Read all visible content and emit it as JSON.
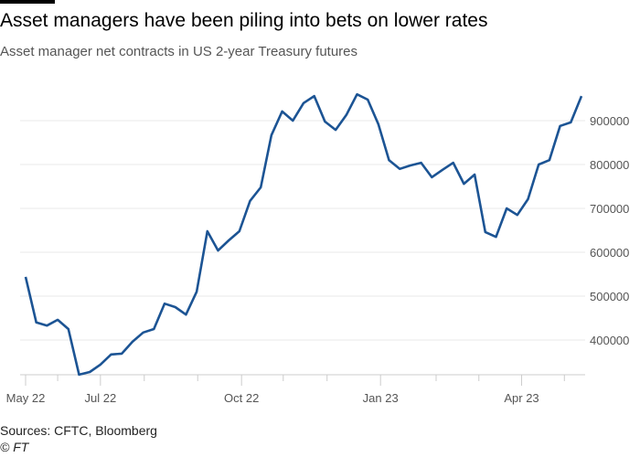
{
  "title": "Asset managers have been piling into bets on lower rates",
  "subtitle": "Asset manager net contracts in US 2-year Treasury futures",
  "source": "Sources: CFTC, Bloomberg",
  "credit": "© FT",
  "colors": {
    "line": "#1c5494",
    "grid": "#e8e8e8",
    "axis": "#cccccc"
  },
  "chart_data": {
    "type": "line",
    "title": "Asset managers have been piling into bets on lower rates",
    "xlabel": "",
    "ylabel": "",
    "ylim": [
      320000,
      980000
    ],
    "yticks": [
      400000,
      500000,
      600000,
      700000,
      800000,
      900000
    ],
    "ytick_labels": [
      "400000",
      "500000",
      "600000",
      "700000",
      "800000",
      "900000"
    ],
    "x_unit": "week index (weekly observations from May 2022)",
    "xticks": [
      {
        "pos": 0,
        "label": "May 22"
      },
      {
        "pos": 7,
        "label": "Jul 22"
      },
      {
        "pos": 20.2,
        "label": "Oct 22"
      },
      {
        "pos": 33.2,
        "label": "Jan 23"
      },
      {
        "pos": 46.4,
        "label": "Apr 23"
      }
    ],
    "minor_xticks": [
      3,
      11.1,
      16.1,
      24.1,
      28.2,
      38.4,
      42.4,
      50.4
    ],
    "series": [
      {
        "name": "Asset manager net contracts",
        "values": [
          544000,
          440000,
          433000,
          446000,
          425000,
          321000,
          327000,
          344000,
          367000,
          369000,
          396000,
          417000,
          425000,
          483000,
          475000,
          458000,
          510000,
          648000,
          604000,
          627000,
          648000,
          717000,
          748000,
          867000,
          921000,
          900000,
          940000,
          956000,
          898000,
          879000,
          913000,
          960000,
          948000,
          892000,
          810000,
          790000,
          798000,
          804000,
          771000,
          788000,
          804000,
          756000,
          777000,
          646000,
          635000,
          700000,
          685000,
          721000,
          800000,
          810000,
          888000,
          896000,
          956000
        ]
      }
    ]
  }
}
